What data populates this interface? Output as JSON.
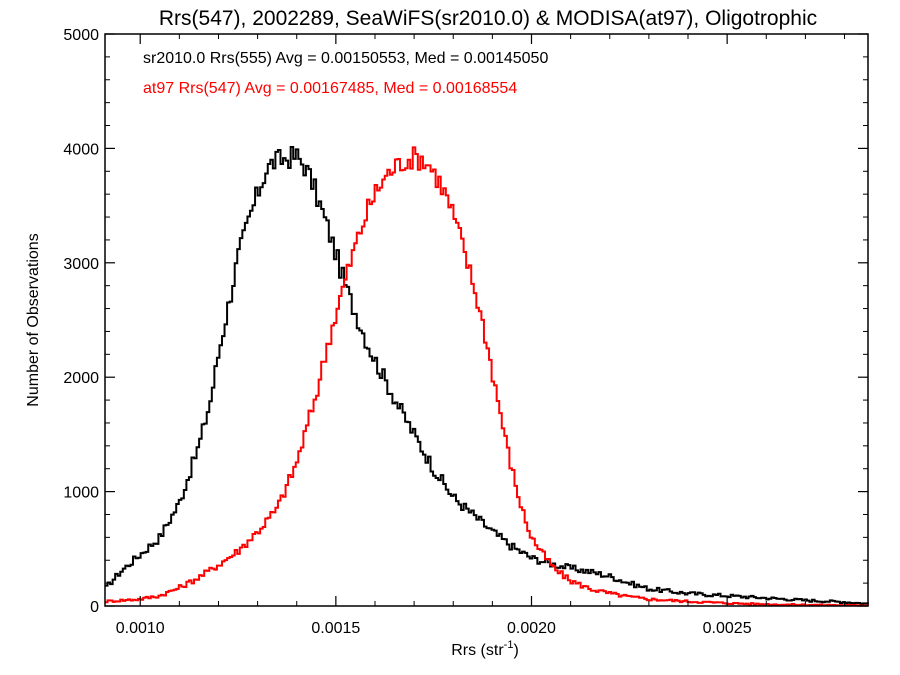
{
  "chart_data": {
    "type": "line",
    "title": "Rrs(547), 2002289, SeaWiFS(sr2010.0) & MODISA(at97), Oligotrophic",
    "xlabel": "Rrs (str",
    "xlabel_sup": "-1",
    "xlabel_close": ")",
    "ylabel": "Number of Observations",
    "xlim": [
      0.00091,
      0.00286
    ],
    "ylim": [
      0,
      5000
    ],
    "x_ticks": [
      {
        "value": 0.001,
        "label": "0.0010"
      },
      {
        "value": 0.0015,
        "label": "0.0015"
      },
      {
        "value": 0.002,
        "label": "0.0020"
      },
      {
        "value": 0.0025,
        "label": "0.0025"
      }
    ],
    "y_ticks": [
      {
        "value": 0,
        "label": "0"
      },
      {
        "value": 1000,
        "label": "1000"
      },
      {
        "value": 2000,
        "label": "2000"
      },
      {
        "value": 3000,
        "label": "3000"
      },
      {
        "value": 4000,
        "label": "4000"
      },
      {
        "value": 5000,
        "label": "5000"
      }
    ],
    "grid": false,
    "annotations": [
      {
        "text": "sr2010.0 Rrs(555) Avg = 0.00150553, Med = 0.00145050",
        "color": "#000000"
      },
      {
        "text": "at97 Rrs(547) Avg = 0.00167485, Med = 0.00168554",
        "color": "#ff0000"
      }
    ],
    "series": [
      {
        "color": "#000000",
        "step": "histogram",
        "x": [
          0.00091,
          0.00095,
          0.001,
          0.00105,
          0.0011,
          0.00115,
          0.00118,
          0.0012,
          0.00123,
          0.00125,
          0.00128,
          0.0013,
          0.00132,
          0.00134,
          0.00136,
          0.00138,
          0.0014,
          0.00142,
          0.00144,
          0.00146,
          0.00148,
          0.0015,
          0.00152,
          0.00154,
          0.00156,
          0.00158,
          0.0016,
          0.00163,
          0.00166,
          0.0017,
          0.00175,
          0.0018,
          0.00185,
          0.0019,
          0.00195,
          0.002,
          0.00205,
          0.0021,
          0.00215,
          0.0022,
          0.00225,
          0.0023,
          0.0024,
          0.0025,
          0.0026,
          0.0027,
          0.0028,
          0.00286
        ],
        "y": [
          150,
          300,
          450,
          600,
          900,
          1400,
          1800,
          2200,
          2700,
          3050,
          3400,
          3600,
          3800,
          3880,
          3900,
          3920,
          3930,
          3850,
          3700,
          3500,
          3300,
          3080,
          2850,
          2650,
          2480,
          2300,
          2150,
          1950,
          1750,
          1500,
          1200,
          950,
          800,
          650,
          520,
          420,
          370,
          330,
          300,
          260,
          200,
          150,
          110,
          90,
          70,
          50,
          35,
          20
        ]
      },
      {
        "color": "#ff0000",
        "step": "histogram",
        "x": [
          0.00091,
          0.001,
          0.00105,
          0.0011,
          0.00115,
          0.0012,
          0.00125,
          0.0013,
          0.00135,
          0.0014,
          0.00145,
          0.00148,
          0.0015,
          0.00152,
          0.00155,
          0.00158,
          0.0016,
          0.00162,
          0.00164,
          0.00166,
          0.00168,
          0.0017,
          0.00172,
          0.00174,
          0.00176,
          0.00178,
          0.0018,
          0.00182,
          0.00184,
          0.00186,
          0.00188,
          0.0019,
          0.00192,
          0.00194,
          0.00196,
          0.00198,
          0.002,
          0.00203,
          0.00206,
          0.0021,
          0.00215,
          0.0022,
          0.00225,
          0.0023,
          0.0024,
          0.0025,
          0.0026,
          0.0027,
          0.00286
        ],
        "y": [
          40,
          60,
          90,
          160,
          250,
          360,
          480,
          650,
          850,
          1250,
          1850,
          2300,
          2550,
          2800,
          3150,
          3450,
          3600,
          3720,
          3800,
          3860,
          3900,
          3920,
          3910,
          3850,
          3740,
          3600,
          3420,
          3200,
          2950,
          2700,
          2400,
          2050,
          1700,
          1350,
          1050,
          800,
          600,
          450,
          320,
          220,
          150,
          110,
          80,
          60,
          40,
          25,
          15,
          10,
          5
        ]
      }
    ]
  }
}
